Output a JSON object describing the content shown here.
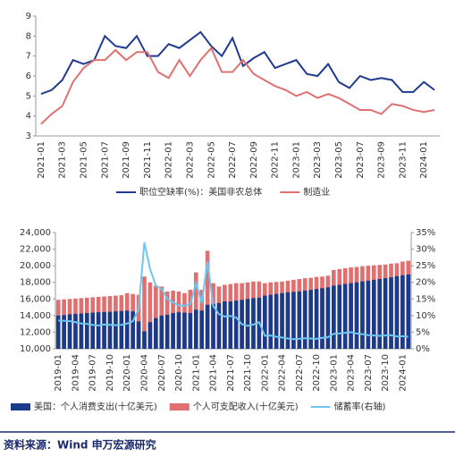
{
  "chart_data": [
    {
      "type": "line",
      "categories": [
        "2021-01",
        null,
        "2021-03",
        null,
        "2021-05",
        null,
        "2021-07",
        null,
        "2021-09",
        null,
        "2021-11",
        null,
        "2022-01",
        null,
        "2022-03",
        null,
        "2022-05",
        null,
        "2022-07",
        null,
        "2022-09",
        null,
        "2022-11",
        null,
        "2023-01",
        null,
        "2023-03",
        null,
        "2023-05",
        null,
        "2023-07",
        null,
        "2023-09",
        null,
        "2023-11",
        null,
        "2024-01",
        null
      ],
      "series": [
        {
          "name": "职位空缺率(%)：美国非农总体",
          "color": "#1f3a8f",
          "values": [
            5.1,
            5.3,
            5.8,
            6.8,
            6.6,
            6.8,
            8.0,
            7.5,
            7.4,
            8.0,
            7.0,
            7.0,
            7.6,
            7.4,
            7.8,
            8.2,
            7.5,
            7.0,
            7.9,
            6.5,
            6.9,
            7.2,
            6.4,
            6.6,
            6.8,
            6.1,
            6.0,
            6.6,
            5.7,
            5.4,
            6.0,
            5.8,
            5.9,
            5.8,
            5.2,
            5.2,
            5.7,
            5.3
          ]
        },
        {
          "name": "制造业",
          "color": "#e07070",
          "values": [
            3.6,
            4.1,
            4.5,
            5.7,
            6.4,
            6.8,
            6.8,
            7.3,
            6.8,
            7.2,
            7.2,
            6.2,
            5.9,
            6.8,
            6.0,
            6.8,
            7.4,
            6.2,
            6.2,
            6.8,
            6.1,
            5.8,
            5.5,
            5.3,
            5.0,
            5.2,
            4.9,
            5.1,
            4.9,
            4.6,
            4.3,
            4.3,
            4.1,
            4.6,
            4.5,
            4.3,
            4.2,
            4.3
          ]
        }
      ],
      "ylim": [
        3,
        9
      ],
      "yticks": [
        3,
        4,
        5,
        6,
        7,
        8,
        9
      ],
      "grid": false,
      "legend": "bottom"
    },
    {
      "type": "bar",
      "categories": [
        "2019-01",
        null,
        null,
        "2019-04",
        null,
        null,
        "2019-07",
        null,
        null,
        "2019-10",
        null,
        null,
        "2020-01",
        null,
        null,
        "2020-04",
        null,
        null,
        "2020-07",
        null,
        null,
        "2020-10",
        null,
        null,
        "2021-01",
        null,
        null,
        "2021-04",
        null,
        null,
        "2021-07",
        null,
        null,
        "2021-10",
        null,
        null,
        "2022-01",
        null,
        null,
        "2022-04",
        null,
        null,
        "2022-07",
        null,
        null,
        "2022-10",
        null,
        null,
        "2023-01",
        null,
        null,
        "2023-04",
        null,
        null,
        "2023-07",
        null,
        null,
        "2023-10",
        null,
        null,
        "2024-01",
        null
      ],
      "series": [
        {
          "name": "美国：个人消费支出(十亿美元)",
          "color": "#1a3a8a",
          "values": [
            14000,
            14050,
            14150,
            14200,
            14250,
            14300,
            14350,
            14400,
            14420,
            14450,
            14500,
            14550,
            14600,
            14500,
            13300,
            12100,
            13200,
            13700,
            14000,
            14100,
            14300,
            14400,
            14350,
            14300,
            14700,
            14600,
            15300,
            15400,
            15500,
            15700,
            15700,
            15800,
            15900,
            16000,
            16100,
            16150,
            16400,
            16500,
            16600,
            16700,
            16800,
            16850,
            16900,
            17000,
            17100,
            17200,
            17300,
            17400,
            17600,
            17700,
            17800,
            17900,
            18000,
            18100,
            18200,
            18300,
            18400,
            18500,
            18600,
            18750,
            18850,
            18950
          ]
        },
        {
          "name": "个人可支配收入(十亿美元)",
          "color": "#e07070",
          "values": [
            15900,
            15950,
            16000,
            16050,
            16100,
            16150,
            16200,
            16250,
            16300,
            16350,
            16400,
            16450,
            16700,
            16600,
            16500,
            18700,
            18000,
            17600,
            17500,
            16900,
            17000,
            16900,
            16700,
            17100,
            19200,
            17100,
            21800,
            17900,
            17500,
            17700,
            17800,
            17900,
            17900,
            18000,
            18100,
            18100,
            17900,
            18000,
            18050,
            18100,
            18200,
            18300,
            18400,
            18500,
            18550,
            18650,
            18700,
            18800,
            19500,
            19600,
            19700,
            19800,
            19850,
            19950,
            20000,
            20050,
            20100,
            20150,
            20250,
            20300,
            20500,
            20600
          ]
        },
        {
          "name": "储蓄率(右轴)",
          "color": "#6ec6f0",
          "type": "line",
          "axis": "y2",
          "values": [
            8.5,
            8.4,
            8.3,
            8.0,
            7.6,
            7.5,
            7.2,
            7.0,
            7.3,
            7.2,
            7.1,
            7.2,
            7.6,
            8.3,
            12.0,
            32.0,
            24.0,
            19.0,
            18.0,
            15.0,
            14.0,
            13.0,
            13.0,
            13.5,
            19.8,
            13.8,
            26.3,
            12.9,
            10.4,
            9.7,
            9.9,
            9.4,
            7.4,
            6.9,
            7.3,
            8.0,
            3.9,
            4.0,
            3.6,
            3.4,
            3.1,
            2.9,
            3.0,
            3.2,
            3.1,
            3.0,
            3.3,
            3.5,
            4.5,
            4.6,
            4.8,
            5.0,
            4.6,
            4.4,
            4.1,
            4.0,
            3.9,
            4.0,
            4.1,
            3.7,
            3.8,
            3.6
          ]
        }
      ],
      "ylim": [
        10000,
        24000
      ],
      "yticks": [
        {
          "value": 10000,
          "label": "10,000"
        },
        {
          "value": 12000,
          "label": "12,000"
        },
        {
          "value": 14000,
          "label": "14,000"
        },
        {
          "value": 16000,
          "label": "16,000"
        },
        {
          "value": 18000,
          "label": "18,000"
        },
        {
          "value": 20000,
          "label": "20,000"
        },
        {
          "value": 22000,
          "label": "22,000"
        },
        {
          "value": 24000,
          "label": "24,000"
        }
      ],
      "y2lim": [
        0,
        35
      ],
      "y2ticks": [
        {
          "value": 0,
          "label": "0%"
        },
        {
          "value": 5,
          "label": "5%"
        },
        {
          "value": 10,
          "label": "10%"
        },
        {
          "value": 15,
          "label": "15%"
        },
        {
          "value": 20,
          "label": "20%"
        },
        {
          "value": 25,
          "label": "25%"
        },
        {
          "value": 30,
          "label": "30%"
        },
        {
          "value": 35,
          "label": "35%"
        }
      ],
      "grid": false,
      "legend": "bottom"
    }
  ],
  "source": "资料来源：Wind  申万宏源研究"
}
